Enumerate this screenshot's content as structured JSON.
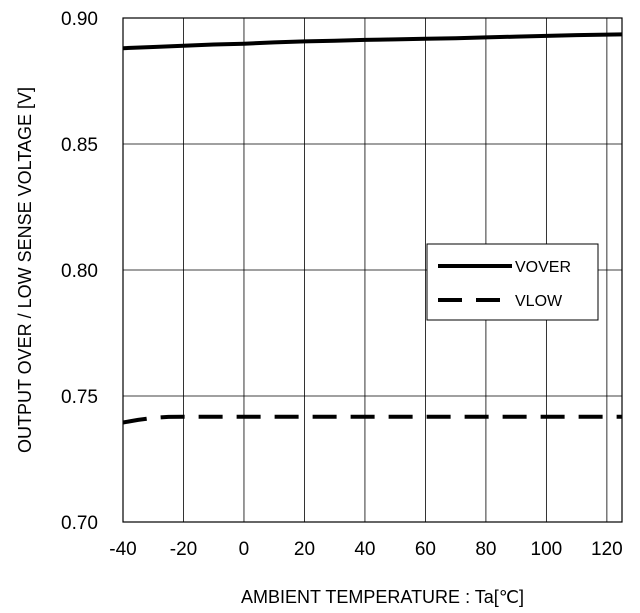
{
  "chart_data": {
    "type": "line",
    "xlabel": "AMBIENT TEMPERATURE : Ta[℃]",
    "ylabel": "OUTPUT OVER / LOW SENSE VOLTAGE [V]",
    "xlim": [
      -40,
      125
    ],
    "ylim": [
      0.7,
      0.9
    ],
    "xticks": [
      -40,
      -20,
      0,
      20,
      40,
      60,
      80,
      100,
      120
    ],
    "yticks": [
      0.7,
      0.75,
      0.8,
      0.85,
      0.9
    ],
    "xtick_labels": [
      "-40",
      "-20",
      "0",
      "20",
      "40",
      "60",
      "80",
      "100",
      "120"
    ],
    "ytick_labels": [
      "0.70",
      "0.75",
      "0.80",
      "0.85",
      "0.90"
    ],
    "grid": true,
    "legend_position": "right-middle",
    "series": [
      {
        "name": "VOVER",
        "style": "solid",
        "color": "#000000",
        "x": [
          -40,
          -30,
          -20,
          -10,
          0,
          10,
          20,
          30,
          40,
          50,
          60,
          70,
          80,
          90,
          100,
          110,
          125
        ],
        "y": [
          0.888,
          0.8885,
          0.889,
          0.8895,
          0.8898,
          0.8903,
          0.8907,
          0.891,
          0.8913,
          0.8915,
          0.8918,
          0.892,
          0.8923,
          0.8926,
          0.8929,
          0.8932,
          0.8935
        ]
      },
      {
        "name": "VLOW",
        "style": "dashed",
        "color": "#000000",
        "x": [
          -40,
          -35,
          -30,
          -25,
          -20,
          0,
          20,
          40,
          60,
          80,
          100,
          125
        ],
        "y": [
          0.7395,
          0.7405,
          0.7413,
          0.7417,
          0.7418,
          0.7418,
          0.7418,
          0.7418,
          0.7418,
          0.7418,
          0.7418,
          0.7418
        ]
      }
    ]
  }
}
